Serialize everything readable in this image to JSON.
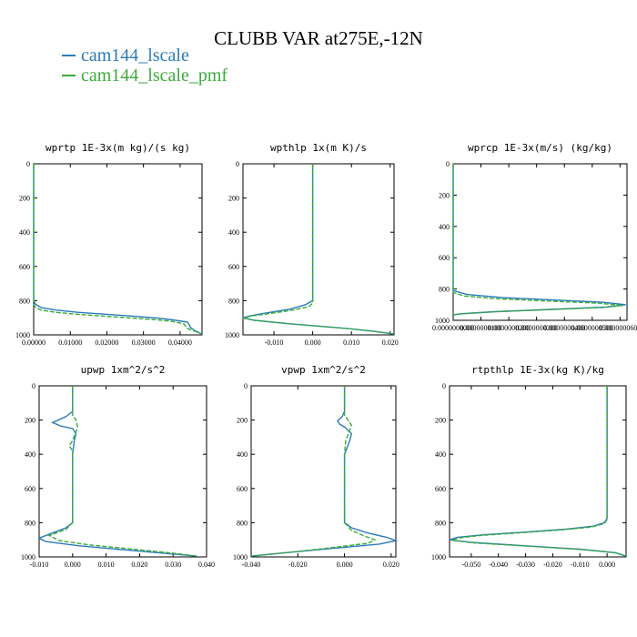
{
  "title": "CLUBB VAR at275E,-12N",
  "legend": [
    {
      "label": "cam144_lscale",
      "color": "#2b7bba"
    },
    {
      "label": "cam144_lscale_pmf",
      "color": "#3aab3a"
    }
  ],
  "chart_data": [
    {
      "type": "line",
      "title": "wprtp  1E-3x(m kg)/(s kg)",
      "xlim": [
        0,
        0.046
      ],
      "ylim": [
        1000,
        0
      ],
      "xticks": [
        0,
        0.01,
        0.02,
        0.03,
        0.04
      ],
      "xticklabels": [
        "0.00000",
        "0.01000",
        "0.02000",
        "0.03000",
        "0.04000"
      ],
      "yticks": [
        0,
        200,
        400,
        600,
        800,
        1000
      ],
      "yticklabels": [
        "0",
        "200",
        "400",
        "600",
        "800",
        "1000"
      ],
      "series": [
        {
          "name": "cam144_lscale",
          "x": [
            0,
            0,
            0,
            0.0005,
            0.002,
            0.006,
            0.012,
            0.02,
            0.028,
            0.034,
            0.038,
            0.042,
            0.0425,
            0.0428,
            0.044,
            0.046
          ],
          "y": [
            0,
            500,
            800,
            820,
            840,
            855,
            868,
            880,
            892,
            902,
            912,
            925,
            940,
            955,
            975,
            995
          ]
        },
        {
          "name": "cam144_lscale_pmf",
          "x": [
            0,
            0,
            0,
            0.0005,
            0.002,
            0.006,
            0.012,
            0.02,
            0.028,
            0.034,
            0.038,
            0.041,
            0.0415,
            0.0418,
            0.044,
            0.046
          ],
          "y": [
            0,
            500,
            820,
            840,
            855,
            868,
            880,
            892,
            903,
            912,
            922,
            935,
            948,
            960,
            978,
            995
          ]
        }
      ]
    },
    {
      "type": "line",
      "title": "wpthlp  1x(m K)/s",
      "xlim": [
        -0.018,
        0.021
      ],
      "ylim": [
        1000,
        0
      ],
      "xticks": [
        -0.01,
        0,
        0.01,
        0.02
      ],
      "xticklabels": [
        "-0.010",
        "0.000",
        "0.010",
        "0.020"
      ],
      "yticks": [
        0,
        200,
        400,
        600,
        800,
        1000
      ],
      "yticklabels": [
        "0",
        "200",
        "400",
        "600",
        "800",
        "1000"
      ],
      "series": [
        {
          "name": "cam144_lscale",
          "x": [
            0,
            0,
            0,
            -0.002,
            -0.006,
            -0.012,
            -0.016,
            -0.018,
            -0.015,
            -0.006,
            0.002,
            0.01,
            0.016,
            0.021
          ],
          "y": [
            0,
            500,
            800,
            825,
            850,
            872,
            888,
            900,
            915,
            935,
            950,
            965,
            980,
            995
          ]
        },
        {
          "name": "cam144_lscale_pmf",
          "x": [
            0,
            0,
            0,
            -0.001,
            -0.005,
            -0.011,
            -0.016,
            -0.018,
            -0.015,
            -0.006,
            0.002,
            0.01,
            0.016,
            0.021
          ],
          "y": [
            0,
            500,
            815,
            835,
            855,
            875,
            890,
            902,
            915,
            935,
            950,
            965,
            980,
            995
          ]
        }
      ]
    },
    {
      "type": "line",
      "title": "wprcp  1E-3x(m/s) (kg/kg)",
      "xlim": [
        0,
        6.25e-07
      ],
      "ylim": [
        1000,
        0
      ],
      "xticks": [
        0,
        1e-07,
        2e-07,
        3e-07,
        4e-07,
        5e-07,
        6e-07
      ],
      "xticklabels": [
        "0.0000000000",
        "0.0000000100",
        "0.0000000200",
        "0.0000000300",
        "0.0000000400",
        "0.0000000500",
        "0.0000000600"
      ],
      "yticks": [
        0,
        200,
        400,
        600,
        800,
        1000
      ],
      "yticklabels": [
        "0",
        "200",
        "400",
        "600",
        "800",
        "1000"
      ],
      "series": [
        {
          "name": "cam144_lscale",
          "x": [
            0,
            0,
            0,
            5e-08,
            1.8e-07,
            3.6e-07,
            5.4e-07,
            6.2e-07,
            5.5e-07,
            3.5e-07,
            1.5e-07,
            3e-08,
            0
          ],
          "y": [
            0,
            500,
            810,
            835,
            855,
            870,
            885,
            900,
            915,
            930,
            945,
            958,
            965
          ]
        },
        {
          "name": "cam144_lscale_pmf",
          "x": [
            0,
            0,
            0,
            4e-08,
            1.6e-07,
            3.4e-07,
            5.2e-07,
            6.1e-07,
            5.4e-07,
            3.4e-07,
            1.4e-07,
            3e-08,
            0
          ],
          "y": [
            0,
            500,
            822,
            845,
            862,
            877,
            890,
            905,
            918,
            932,
            946,
            958,
            965
          ]
        }
      ]
    },
    {
      "type": "line",
      "title": "upwp  1xm^2/s^2",
      "xlim": [
        -0.01,
        0.04
      ],
      "ylim": [
        1000,
        0
      ],
      "xticks": [
        -0.01,
        0,
        0.01,
        0.02,
        0.03,
        0.04
      ],
      "xticklabels": [
        "-0.010",
        "0.000",
        "0.010",
        "0.020",
        "0.030",
        "0.040"
      ],
      "yticks": [
        0,
        200,
        400,
        600,
        800,
        1000
      ],
      "yticklabels": [
        "0",
        "200",
        "400",
        "600",
        "800",
        "1000"
      ],
      "series": [
        {
          "name": "cam144_lscale",
          "x": [
            0,
            0,
            -0.002,
            -0.006,
            -0.0035,
            0,
            0.001,
            0.0005,
            0,
            0,
            -0.002,
            -0.006,
            -0.01,
            -0.008,
            0.002,
            0.015,
            0.028,
            0.037
          ],
          "y": [
            0,
            150,
            180,
            215,
            235,
            250,
            280,
            320,
            400,
            800,
            830,
            860,
            890,
            910,
            935,
            958,
            980,
            995
          ]
        },
        {
          "name": "cam144_lscale_pmf",
          "x": [
            0,
            0,
            0.001,
            0.0015,
            0.0008,
            0,
            -0.001,
            0,
            0,
            0,
            -0.002,
            -0.007,
            -0.004,
            0.005,
            0.018,
            0.03,
            0.037
          ],
          "y": [
            0,
            170,
            200,
            240,
            280,
            320,
            350,
            380,
            500,
            800,
            840,
            875,
            905,
            930,
            955,
            978,
            995
          ]
        }
      ]
    },
    {
      "type": "line",
      "title": "vpwp  1xm^2/s^2",
      "xlim": [
        -0.04,
        0.022
      ],
      "ylim": [
        1000,
        0
      ],
      "xticks": [
        -0.04,
        -0.02,
        0,
        0.02
      ],
      "xticklabels": [
        "-0.040",
        "-0.020",
        "0.000",
        "0.020"
      ],
      "yticks": [
        0,
        200,
        400,
        600,
        800,
        1000
      ],
      "yticklabels": [
        "0",
        "200",
        "400",
        "600",
        "800",
        "1000"
      ],
      "series": [
        {
          "name": "cam144_lscale",
          "x": [
            0,
            0,
            -0.001,
            -0.003,
            -0.002,
            0,
            0.003,
            0.002,
            0,
            0,
            0.003,
            0.01,
            0.018,
            0.022,
            0.015,
            -0.005,
            -0.025,
            -0.04
          ],
          "y": [
            0,
            150,
            180,
            205,
            225,
            240,
            280,
            330,
            400,
            800,
            830,
            860,
            885,
            905,
            925,
            950,
            975,
            995
          ]
        },
        {
          "name": "cam144_lscale_pmf",
          "x": [
            0,
            0,
            0.0015,
            0.003,
            0.002,
            0.0005,
            0,
            0,
            0.003,
            0.008,
            0.013,
            0.01,
            -0.008,
            -0.025,
            -0.04
          ],
          "y": [
            0,
            170,
            200,
            230,
            270,
            320,
            400,
            800,
            845,
            875,
            900,
            920,
            950,
            975,
            995
          ]
        }
      ]
    },
    {
      "type": "line",
      "title": "rtpthlp  1E-3x(kg K)/kg",
      "xlim": [
        -0.058,
        0.007
      ],
      "ylim": [
        1000,
        0
      ],
      "xticks": [
        -0.05,
        -0.04,
        -0.03,
        -0.02,
        -0.01,
        0
      ],
      "xticklabels": [
        "-0.050",
        "-0.040",
        "-0.030",
        "-0.020",
        "-0.010",
        "0.000"
      ],
      "yticks": [
        0,
        200,
        400,
        600,
        800,
        1000
      ],
      "yticklabels": [
        "0",
        "200",
        "400",
        "600",
        "800",
        "1000"
      ],
      "series": [
        {
          "name": "cam144_lscale",
          "x": [
            0,
            0,
            0,
            -0.001,
            -0.005,
            -0.015,
            -0.03,
            -0.045,
            -0.055,
            -0.058,
            -0.05,
            -0.03,
            -0.01,
            0.003,
            0.007
          ],
          "y": [
            0,
            500,
            775,
            800,
            820,
            838,
            855,
            870,
            885,
            900,
            915,
            935,
            955,
            975,
            995
          ]
        },
        {
          "name": "cam144_lscale_pmf",
          "x": [
            0,
            0,
            0,
            -0.001,
            -0.006,
            -0.018,
            -0.033,
            -0.047,
            -0.055,
            -0.057,
            -0.049,
            -0.029,
            -0.009,
            0.003,
            0.007
          ],
          "y": [
            0,
            500,
            782,
            806,
            826,
            843,
            860,
            875,
            890,
            903,
            918,
            937,
            957,
            976,
            995
          ]
        }
      ]
    }
  ]
}
